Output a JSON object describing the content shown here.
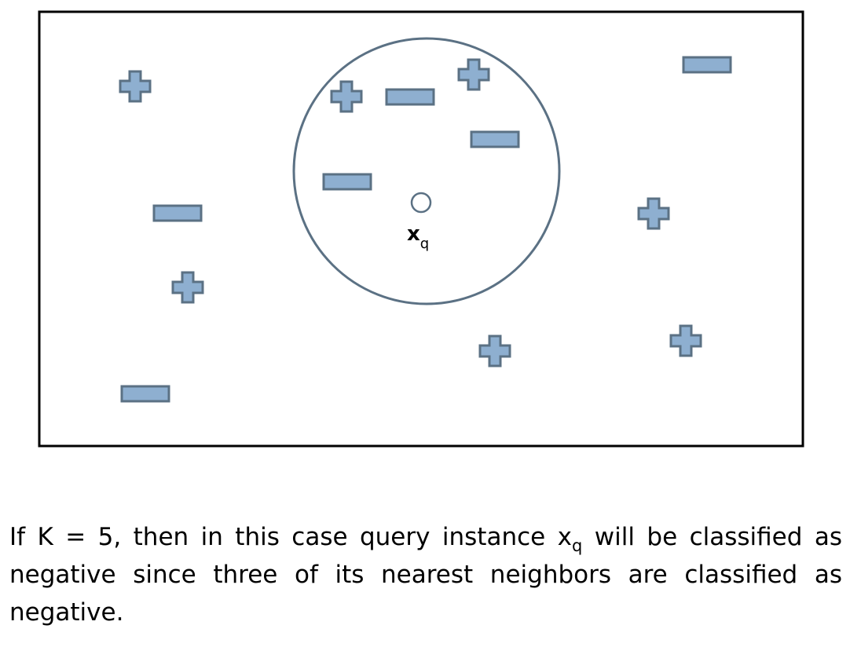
{
  "diagram": {
    "query_label_main": "x",
    "query_label_sub": "q",
    "colors": {
      "shape_fill": "#8eafd0",
      "shape_stroke": "#5b7184",
      "circle_stroke": "#5b7184",
      "frame_stroke": "#000000"
    },
    "icons": {
      "positive": "plus-icon",
      "negative": "minus-icon",
      "query": "query-point-circle"
    }
  },
  "caption": {
    "part1": "If K = 5, then in this case query instance x",
    "sub": "q",
    "part2": " will be classified as negative since three of its nearest neighbors are classified as negative."
  }
}
